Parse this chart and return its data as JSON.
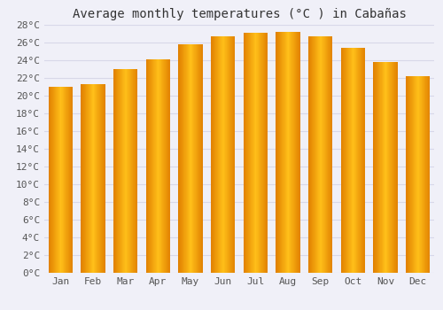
{
  "title": "Average monthly temperatures (°C ) in Cabañas",
  "months": [
    "Jan",
    "Feb",
    "Mar",
    "Apr",
    "May",
    "Jun",
    "Jul",
    "Aug",
    "Sep",
    "Oct",
    "Nov",
    "Dec"
  ],
  "temperatures": [
    21.0,
    21.3,
    23.0,
    24.1,
    25.8,
    26.7,
    27.1,
    27.2,
    26.7,
    25.4,
    23.8,
    22.2
  ],
  "bar_color_center": "#FFB830",
  "bar_color_edge": "#E08000",
  "background_color": "#f0f0f8",
  "grid_color": "#d8d8e8",
  "ylim": [
    0,
    28
  ],
  "ytick_step": 2,
  "title_fontsize": 10,
  "tick_fontsize": 8,
  "font_family": "monospace"
}
